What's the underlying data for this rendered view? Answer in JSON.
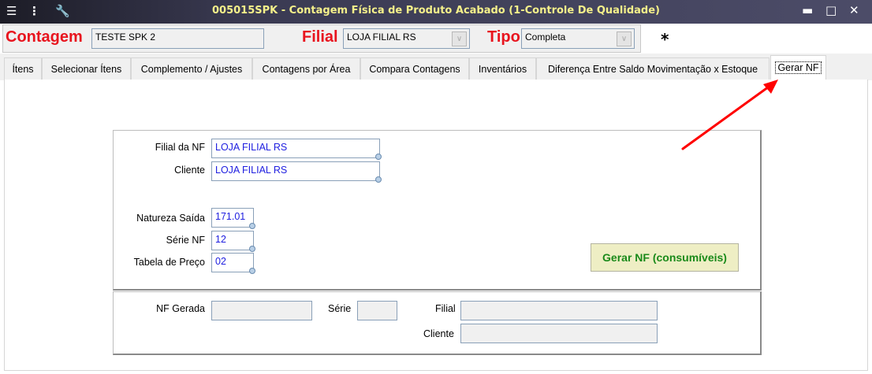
{
  "window": {
    "title": "005015SPK - Contagem Física de Produto Acabado (1-Controle De Qualidade)"
  },
  "header": {
    "contagem_label": "Contagem",
    "contagem_value": "TESTE SPK 2",
    "filial_label": "Filial",
    "filial_value": "LOJA FILIAL RS",
    "tipo_label": "Tipo",
    "tipo_value": "Completa",
    "asterisk": "*"
  },
  "tabs": [
    {
      "label": "Ítens"
    },
    {
      "label": "Selecionar Ítens"
    },
    {
      "label": "Complemento / Ajustes"
    },
    {
      "label": "Contagens por Área"
    },
    {
      "label": "Compara Contagens"
    },
    {
      "label": "Inventários"
    },
    {
      "label": "Diferença Entre Saldo Movimentação x Estoque"
    },
    {
      "label": "Gerar NF",
      "active": true
    }
  ],
  "form": {
    "filial_nf_label": "Filial da NF",
    "filial_nf_value": "LOJA FILIAL RS",
    "cliente_label": "Cliente",
    "cliente_value": "LOJA FILIAL RS",
    "natureza_label": "Natureza Saída",
    "natureza_value": "171.01",
    "serie_label": "Série NF",
    "serie_value": "12",
    "tabela_label": "Tabela de Preço",
    "tabela_value": "02",
    "gerar_button": "Gerar NF (consumíveis)"
  },
  "result": {
    "nf_gerada_label": "NF Gerada",
    "nf_gerada_value": "",
    "serie_label": "Série",
    "serie_value": "",
    "filial_label": "Filial",
    "filial_value": "",
    "cliente_label": "Cliente",
    "cliente_value": ""
  },
  "colors": {
    "label_red": "#e8141e",
    "input_text": "#2020e0",
    "button_text": "#1a8a1a",
    "button_bg": "#eeeec4",
    "annotation_arrow": "#ff0000"
  }
}
